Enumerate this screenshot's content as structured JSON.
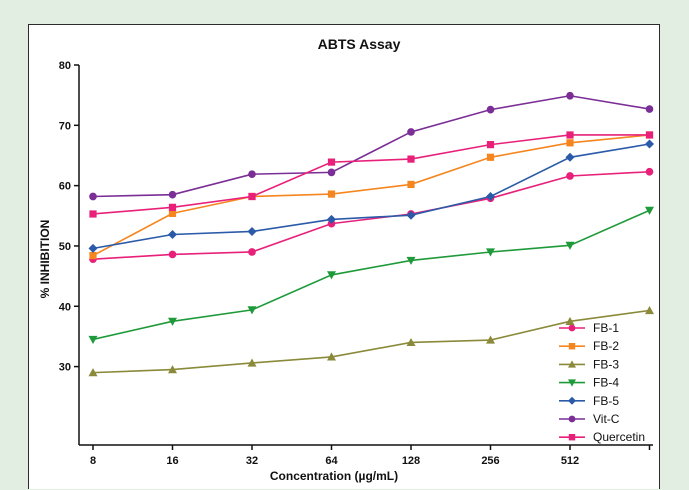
{
  "chart_data": {
    "type": "line",
    "title": "ABTS Assay",
    "xlabel": "Concentration (µg/mL)",
    "ylabel": "% INHIBITION",
    "categories": [
      "8",
      "16",
      "32",
      "64",
      "128",
      "256",
      "512",
      ""
    ],
    "ylim": [
      17,
      80
    ],
    "yticks": [
      30,
      40,
      50,
      60,
      70,
      80
    ],
    "grid": false,
    "legend_position": "bottom-right",
    "series": [
      {
        "name": "FB-1",
        "color": "#e8207a",
        "marker": "circle",
        "values": [
          47.8,
          48.6,
          49.0,
          53.7,
          55.3,
          57.9,
          61.6,
          62.3
        ]
      },
      {
        "name": "FB-2",
        "color": "#f5861f",
        "marker": "square",
        "values": [
          48.4,
          55.4,
          58.2,
          58.6,
          60.2,
          64.7,
          67.1,
          68.4
        ]
      },
      {
        "name": "FB-3",
        "color": "#8a8a3a",
        "marker": "triangle-up",
        "values": [
          29.0,
          29.5,
          30.6,
          31.6,
          34.0,
          34.4,
          37.5,
          39.3
        ]
      },
      {
        "name": "FB-4",
        "color": "#1f9a3a",
        "marker": "triangle-down",
        "values": [
          34.5,
          37.5,
          39.4,
          45.2,
          47.6,
          49.0,
          50.1,
          55.9
        ]
      },
      {
        "name": "FB-5",
        "color": "#2a5aa8",
        "marker": "diamond",
        "values": [
          49.6,
          51.9,
          52.4,
          54.4,
          55.1,
          58.2,
          64.7,
          66.9
        ]
      },
      {
        "name": "Vit-C",
        "color": "#7a2e96",
        "marker": "circle",
        "values": [
          58.2,
          58.5,
          61.9,
          62.2,
          68.9,
          72.6,
          74.9,
          72.7
        ]
      },
      {
        "name": "Quercetin",
        "color": "#e8207a",
        "marker": "square",
        "values": [
          55.3,
          56.4,
          58.2,
          63.9,
          64.4,
          66.8,
          68.4,
          68.4
        ]
      }
    ]
  }
}
